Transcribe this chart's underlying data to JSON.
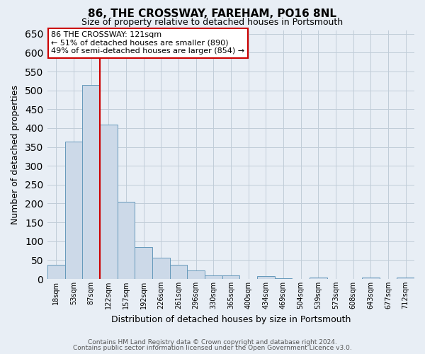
{
  "title1": "86, THE CROSSWAY, FAREHAM, PO16 8NL",
  "title2": "Size of property relative to detached houses in Portsmouth",
  "xlabel": "Distribution of detached houses by size in Portsmouth",
  "ylabel": "Number of detached properties",
  "categories": [
    "18sqm",
    "53sqm",
    "87sqm",
    "122sqm",
    "157sqm",
    "192sqm",
    "226sqm",
    "261sqm",
    "296sqm",
    "330sqm",
    "365sqm",
    "400sqm",
    "434sqm",
    "469sqm",
    "504sqm",
    "539sqm",
    "573sqm",
    "608sqm",
    "643sqm",
    "677sqm",
    "712sqm"
  ],
  "values": [
    38,
    365,
    515,
    410,
    205,
    85,
    57,
    37,
    22,
    10,
    10,
    0,
    7,
    2,
    0,
    4,
    0,
    0,
    4,
    0,
    4
  ],
  "bar_color": "#ccd9e8",
  "bar_edge_color": "#6699bb",
  "vline_x": 2.5,
  "vline_color": "#cc0000",
  "annotation_text": "86 THE CROSSWAY: 121sqm\n← 51% of detached houses are smaller (890)\n49% of semi-detached houses are larger (854) →",
  "annotation_box_color": "#ffffff",
  "annotation_box_edge": "#cc0000",
  "ylim": [
    0,
    660
  ],
  "yticks": [
    0,
    50,
    100,
    150,
    200,
    250,
    300,
    350,
    400,
    450,
    500,
    550,
    600,
    650
  ],
  "grid_color": "#c0ccd8",
  "bg_color": "#e8eef5",
  "plot_bg_color": "#e8eef5",
  "footnote1": "Contains HM Land Registry data © Crown copyright and database right 2024.",
  "footnote2": "Contains public sector information licensed under the Open Government Licence v3.0."
}
